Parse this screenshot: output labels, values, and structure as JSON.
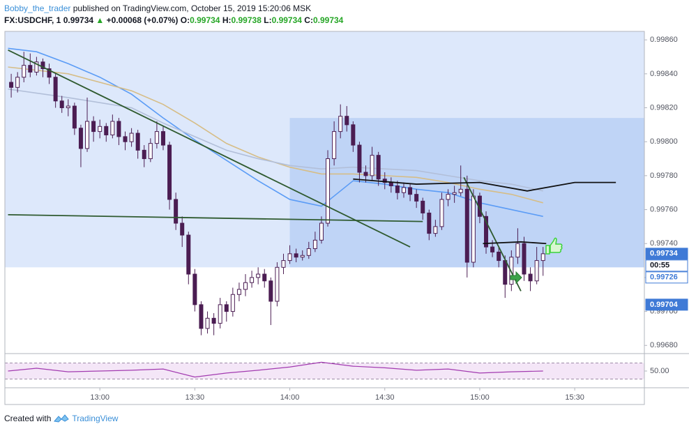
{
  "header": {
    "author": "Bobby_the_trader",
    "published": "published on TradingView.com, October 15, 2019 15:20:06 MSK",
    "symbol": "FX:USDCHF, 1",
    "last": "0.99734",
    "arrow": "▲",
    "change": "+0.00068 (+0.07%)",
    "ohlc": [
      {
        "label": "O:",
        "value": "0.99734"
      },
      {
        "label": "H:",
        "value": "0.99738"
      },
      {
        "label": "L:",
        "value": "0.99734"
      },
      {
        "label": "C:",
        "value": "0.99734"
      }
    ]
  },
  "footer": {
    "prefix": "Created with",
    "brand": "TradingView"
  },
  "chart_data": {
    "type": "candlestick",
    "candle_color": "#4b1d52",
    "xlim": [
      "12:30",
      "15:52"
    ],
    "xticks": [
      "13:00",
      "13:30",
      "14:00",
      "14:30",
      "15:00",
      "15:30"
    ],
    "ylim": [
      0.99676,
      0.99865
    ],
    "yticks": [
      {
        "value": 0.9986,
        "label": "0.99860"
      },
      {
        "value": 0.9984,
        "label": "0.99840"
      },
      {
        "value": 0.9982,
        "label": "0.99820"
      },
      {
        "value": 0.998,
        "label": "0.99800"
      },
      {
        "value": 0.9978,
        "label": "0.99780"
      },
      {
        "value": 0.9976,
        "label": "0.99760"
      },
      {
        "value": 0.9974,
        "label": "0.99740"
      },
      {
        "value": 0.9972,
        "label": "0.99720"
      },
      {
        "value": 0.997,
        "label": "0.99700"
      },
      {
        "value": 0.9968,
        "label": "0.99680"
      }
    ],
    "x": [
      "12:32",
      "12:34",
      "12:36",
      "12:38",
      "12:40",
      "12:42",
      "12:44",
      "12:46",
      "12:48",
      "12:50",
      "12:52",
      "12:54",
      "12:56",
      "12:58",
      "13:00",
      "13:02",
      "13:04",
      "13:06",
      "13:08",
      "13:10",
      "13:12",
      "13:14",
      "13:16",
      "13:18",
      "13:20",
      "13:22",
      "13:24",
      "13:26",
      "13:28",
      "13:30",
      "13:32",
      "13:34",
      "13:36",
      "13:38",
      "13:40",
      "13:42",
      "13:44",
      "13:46",
      "13:48",
      "13:50",
      "13:52",
      "13:54",
      "13:56",
      "13:58",
      "14:00",
      "14:02",
      "14:04",
      "14:06",
      "14:08",
      "14:10",
      "14:12",
      "14:14",
      "14:16",
      "14:18",
      "14:20",
      "14:22",
      "14:24",
      "14:26",
      "14:28",
      "14:30",
      "14:32",
      "14:34",
      "14:36",
      "14:38",
      "14:40",
      "14:42",
      "14:44",
      "14:46",
      "14:48",
      "14:50",
      "14:52",
      "14:54",
      "14:56",
      "14:58",
      "15:00",
      "15:02",
      "15:04",
      "15:06",
      "15:08",
      "15:10",
      "15:12",
      "15:14",
      "15:16",
      "15:18",
      "15:20"
    ],
    "candles": [
      [
        0.99835,
        0.9984,
        0.99826,
        0.99832
      ],
      [
        0.99832,
        0.99841,
        0.99829,
        0.99838
      ],
      [
        0.99838,
        0.99853,
        0.99835,
        0.99845
      ],
      [
        0.99845,
        0.99852,
        0.99838,
        0.99841
      ],
      [
        0.99841,
        0.9985,
        0.99839,
        0.99847
      ],
      [
        0.99847,
        0.99849,
        0.99838,
        0.99843
      ],
      [
        0.99843,
        0.99846,
        0.99834,
        0.99838
      ],
      [
        0.99838,
        0.9984,
        0.9982,
        0.99824
      ],
      [
        0.99824,
        0.99827,
        0.99817,
        0.9982
      ],
      [
        0.9982,
        0.99825,
        0.99815,
        0.99821
      ],
      [
        0.99821,
        0.99823,
        0.99804,
        0.99808
      ],
      [
        0.99808,
        0.9981,
        0.99785,
        0.99796
      ],
      [
        0.99796,
        0.99826,
        0.99794,
        0.99812
      ],
      [
        0.99812,
        0.99815,
        0.998,
        0.99806
      ],
      [
        0.99806,
        0.99813,
        0.99802,
        0.99809
      ],
      [
        0.99809,
        0.99811,
        0.998,
        0.99804
      ],
      [
        0.99804,
        0.99816,
        0.99802,
        0.99812
      ],
      [
        0.99812,
        0.99814,
        0.99798,
        0.99803
      ],
      [
        0.99803,
        0.99806,
        0.99795,
        0.998
      ],
      [
        0.998,
        0.99808,
        0.99797,
        0.99805
      ],
      [
        0.99805,
        0.99807,
        0.9979,
        0.99795
      ],
      [
        0.99795,
        0.99798,
        0.99785,
        0.9979
      ],
      [
        0.9979,
        0.99802,
        0.99788,
        0.99799
      ],
      [
        0.99799,
        0.99812,
        0.99796,
        0.99806
      ],
      [
        0.99806,
        0.99809,
        0.99795,
        0.99798
      ],
      [
        0.99798,
        0.998,
        0.9976,
        0.99766
      ],
      [
        0.99766,
        0.9977,
        0.99748,
        0.99752
      ],
      [
        0.99752,
        0.99756,
        0.99738,
        0.99745
      ],
      [
        0.99745,
        0.99747,
        0.99716,
        0.99722
      ],
      [
        0.99722,
        0.99725,
        0.997,
        0.99704
      ],
      [
        0.99704,
        0.99706,
        0.99686,
        0.9969
      ],
      [
        0.9969,
        0.997,
        0.99687,
        0.99696
      ],
      [
        0.99696,
        0.99699,
        0.99686,
        0.99693
      ],
      [
        0.99693,
        0.99708,
        0.9969,
        0.99704
      ],
      [
        0.99704,
        0.99706,
        0.99694,
        0.997
      ],
      [
        0.997,
        0.99714,
        0.99697,
        0.9971
      ],
      [
        0.9971,
        0.99717,
        0.99706,
        0.99713
      ],
      [
        0.99713,
        0.99722,
        0.99709,
        0.99717
      ],
      [
        0.99717,
        0.99724,
        0.99714,
        0.9972
      ],
      [
        0.9972,
        0.99726,
        0.99716,
        0.99722
      ],
      [
        0.99722,
        0.99725,
        0.99714,
        0.99718
      ],
      [
        0.99718,
        0.9972,
        0.99692,
        0.99706
      ],
      [
        0.99706,
        0.99729,
        0.99703,
        0.99726
      ],
      [
        0.99726,
        0.99734,
        0.99722,
        0.9973
      ],
      [
        0.9973,
        0.99739,
        0.99728,
        0.99734
      ],
      [
        0.99734,
        0.99737,
        0.99729,
        0.99732
      ],
      [
        0.99732,
        0.99736,
        0.9973,
        0.99733
      ],
      [
        0.99733,
        0.99741,
        0.99731,
        0.99737
      ],
      [
        0.99737,
        0.99747,
        0.99735,
        0.99742
      ],
      [
        0.99742,
        0.99756,
        0.9974,
        0.99752
      ],
      [
        0.99752,
        0.99795,
        0.9975,
        0.9979
      ],
      [
        0.9979,
        0.99812,
        0.99786,
        0.99806
      ],
      [
        0.99806,
        0.99822,
        0.99802,
        0.99815
      ],
      [
        0.99815,
        0.99821,
        0.99806,
        0.9981
      ],
      [
        0.9981,
        0.99812,
        0.99794,
        0.99798
      ],
      [
        0.99798,
        0.998,
        0.99776,
        0.99782
      ],
      [
        0.99782,
        0.99786,
        0.99776,
        0.9978
      ],
      [
        0.9978,
        0.99797,
        0.99777,
        0.99792
      ],
      [
        0.99792,
        0.99794,
        0.99774,
        0.99778
      ],
      [
        0.99778,
        0.99782,
        0.99772,
        0.99776
      ],
      [
        0.99776,
        0.99779,
        0.9977,
        0.99774
      ],
      [
        0.99774,
        0.99777,
        0.99766,
        0.9977
      ],
      [
        0.9977,
        0.99776,
        0.99767,
        0.99773
      ],
      [
        0.99773,
        0.99775,
        0.99765,
        0.99769
      ],
      [
        0.99769,
        0.99772,
        0.99761,
        0.99765
      ],
      [
        0.99765,
        0.99767,
        0.99754,
        0.99758
      ],
      [
        0.99758,
        0.9976,
        0.99742,
        0.99746
      ],
      [
        0.99746,
        0.99754,
        0.99744,
        0.9975
      ],
      [
        0.9975,
        0.9977,
        0.99748,
        0.99766
      ],
      [
        0.99766,
        0.99772,
        0.99762,
        0.99769
      ],
      [
        0.99769,
        0.99774,
        0.99764,
        0.9977
      ],
      [
        0.9977,
        0.99786,
        0.99768,
        0.99772
      ],
      [
        0.99772,
        0.9978,
        0.9972,
        0.99729
      ],
      [
        0.99729,
        0.99772,
        0.99726,
        0.99768
      ],
      [
        0.99768,
        0.9977,
        0.99752,
        0.99756
      ],
      [
        0.99756,
        0.99759,
        0.99734,
        0.99738
      ],
      [
        0.99738,
        0.99742,
        0.99732,
        0.99735
      ],
      [
        0.99735,
        0.99738,
        0.99726,
        0.9973
      ],
      [
        0.9973,
        0.99733,
        0.99708,
        0.99716
      ],
      [
        0.99716,
        0.99736,
        0.99712,
        0.99732
      ],
      [
        0.99732,
        0.99749,
        0.99728,
        0.9974
      ],
      [
        0.9974,
        0.99744,
        0.99718,
        0.99722
      ],
      [
        0.99722,
        0.99726,
        0.99712,
        0.99718
      ],
      [
        0.99718,
        0.99738,
        0.99716,
        0.9973
      ],
      [
        0.9973,
        0.99738,
        0.99721,
        0.99734
      ]
    ],
    "indicators": [
      {
        "color": "#5b9cf6",
        "x": [
          "12:31",
          "12:40",
          "12:50",
          "13:00",
          "13:10",
          "13:20",
          "13:30",
          "13:40",
          "13:50",
          "14:00",
          "14:10",
          "14:20",
          "14:30",
          "14:40",
          "14:50",
          "15:00",
          "15:10",
          "15:20"
        ],
        "values": [
          0.99855,
          0.99853,
          0.99846,
          0.99838,
          0.99828,
          0.99814,
          0.99801,
          0.99789,
          0.99777,
          0.99766,
          0.99762,
          0.99777,
          0.99775,
          0.99772,
          0.9977,
          0.99764,
          0.9976,
          0.99756
        ]
      },
      {
        "color": "#d6bd86",
        "x": [
          "12:31",
          "12:50",
          "13:10",
          "13:20",
          "13:30",
          "13:40",
          "13:50",
          "14:00",
          "14:10",
          "14:20",
          "14:30",
          "14:40",
          "14:50",
          "15:00",
          "15:10",
          "15:20"
        ],
        "values": [
          0.99844,
          0.9984,
          0.9983,
          0.99822,
          0.99811,
          0.99799,
          0.99791,
          0.99785,
          0.99781,
          0.99781,
          0.9978,
          0.99779,
          0.99776,
          0.99772,
          0.99769,
          0.99764
        ]
      },
      {
        "color": "#b2bfd9",
        "x": [
          "12:31",
          "12:50",
          "13:10",
          "13:20",
          "13:30",
          "13:40",
          "13:50",
          "14:00",
          "14:10",
          "14:20",
          "14:30",
          "14:40",
          "14:50",
          "15:00",
          "15:10",
          "15:20"
        ],
        "values": [
          0.99831,
          0.99826,
          0.9982,
          0.99811,
          0.99803,
          0.99795,
          0.9979,
          0.99786,
          0.99784,
          0.99785,
          0.99784,
          0.99783,
          0.9978,
          0.99777,
          0.99775,
          0.99771
        ]
      }
    ],
    "zones": [
      {
        "from": "12:30",
        "bottom": 0.99726,
        "color": "#dde8fb"
      },
      {
        "from": "14:00",
        "top": 0.99814,
        "bottom": 0.99726,
        "color": "#bfd4f6"
      }
    ],
    "horizontal_lines": [
      {
        "from": "12:30",
        "price": 0.99704,
        "color": "#3d7bd9"
      },
      {
        "from": "14:56",
        "price": 0.99726,
        "color": "#3d7bd9"
      }
    ],
    "trend_lines": [
      {
        "color": "#2f5a2f",
        "from": [
          "12:31",
          0.99854
        ],
        "to": [
          "14:38",
          0.99738
        ]
      },
      {
        "color": "#2f5a2f",
        "from": [
          "12:31",
          0.99757
        ],
        "to": [
          "14:42",
          0.99753
        ]
      },
      {
        "color": "#2f5a2f",
        "from": [
          "14:55",
          0.99779
        ],
        "to": [
          "15:13",
          0.99712
        ]
      }
    ],
    "paths": [
      {
        "color": "#111111",
        "points": [
          [
            "14:20",
            0.99778
          ],
          [
            "14:40",
            0.99775
          ],
          [
            "15:00",
            0.99776
          ],
          [
            "15:15",
            0.99771
          ],
          [
            "15:30",
            0.99776
          ],
          [
            "15:43",
            0.99776
          ]
        ]
      },
      {
        "color": "#111111",
        "points": [
          [
            "15:01",
            0.9974
          ],
          [
            "15:13",
            0.99741
          ],
          [
            "15:21",
            0.9974
          ]
        ]
      }
    ],
    "last_price": {
      "value": 0.99734,
      "bg": "#3f7ad6",
      "fg": "#ffffff"
    },
    "countdown": "00:55",
    "price_tags": [
      {
        "value": 0.99726,
        "bg": "#ffffff",
        "fg": "#3f7ad6"
      },
      {
        "value": 0.99704,
        "bg": "#3f7ad6",
        "fg": "#ffffff"
      }
    ],
    "rsi": {
      "color": "#a23ab0",
      "ylim": [
        10,
        90
      ],
      "band": [
        30,
        70
      ],
      "yticks": [
        {
          "value": 50,
          "label": "50.00"
        }
      ],
      "x": [
        "12:31",
        "12:40",
        "12:50",
        "13:00",
        "13:10",
        "13:20",
        "13:30",
        "13:40",
        "13:50",
        "14:00",
        "14:10",
        "14:20",
        "14:30",
        "14:40",
        "14:50",
        "15:00",
        "15:10",
        "15:20"
      ],
      "values": [
        50,
        57,
        48,
        50,
        52,
        55,
        35,
        45,
        52,
        60,
        72,
        62,
        58,
        52,
        55,
        45,
        48,
        50
      ]
    }
  }
}
